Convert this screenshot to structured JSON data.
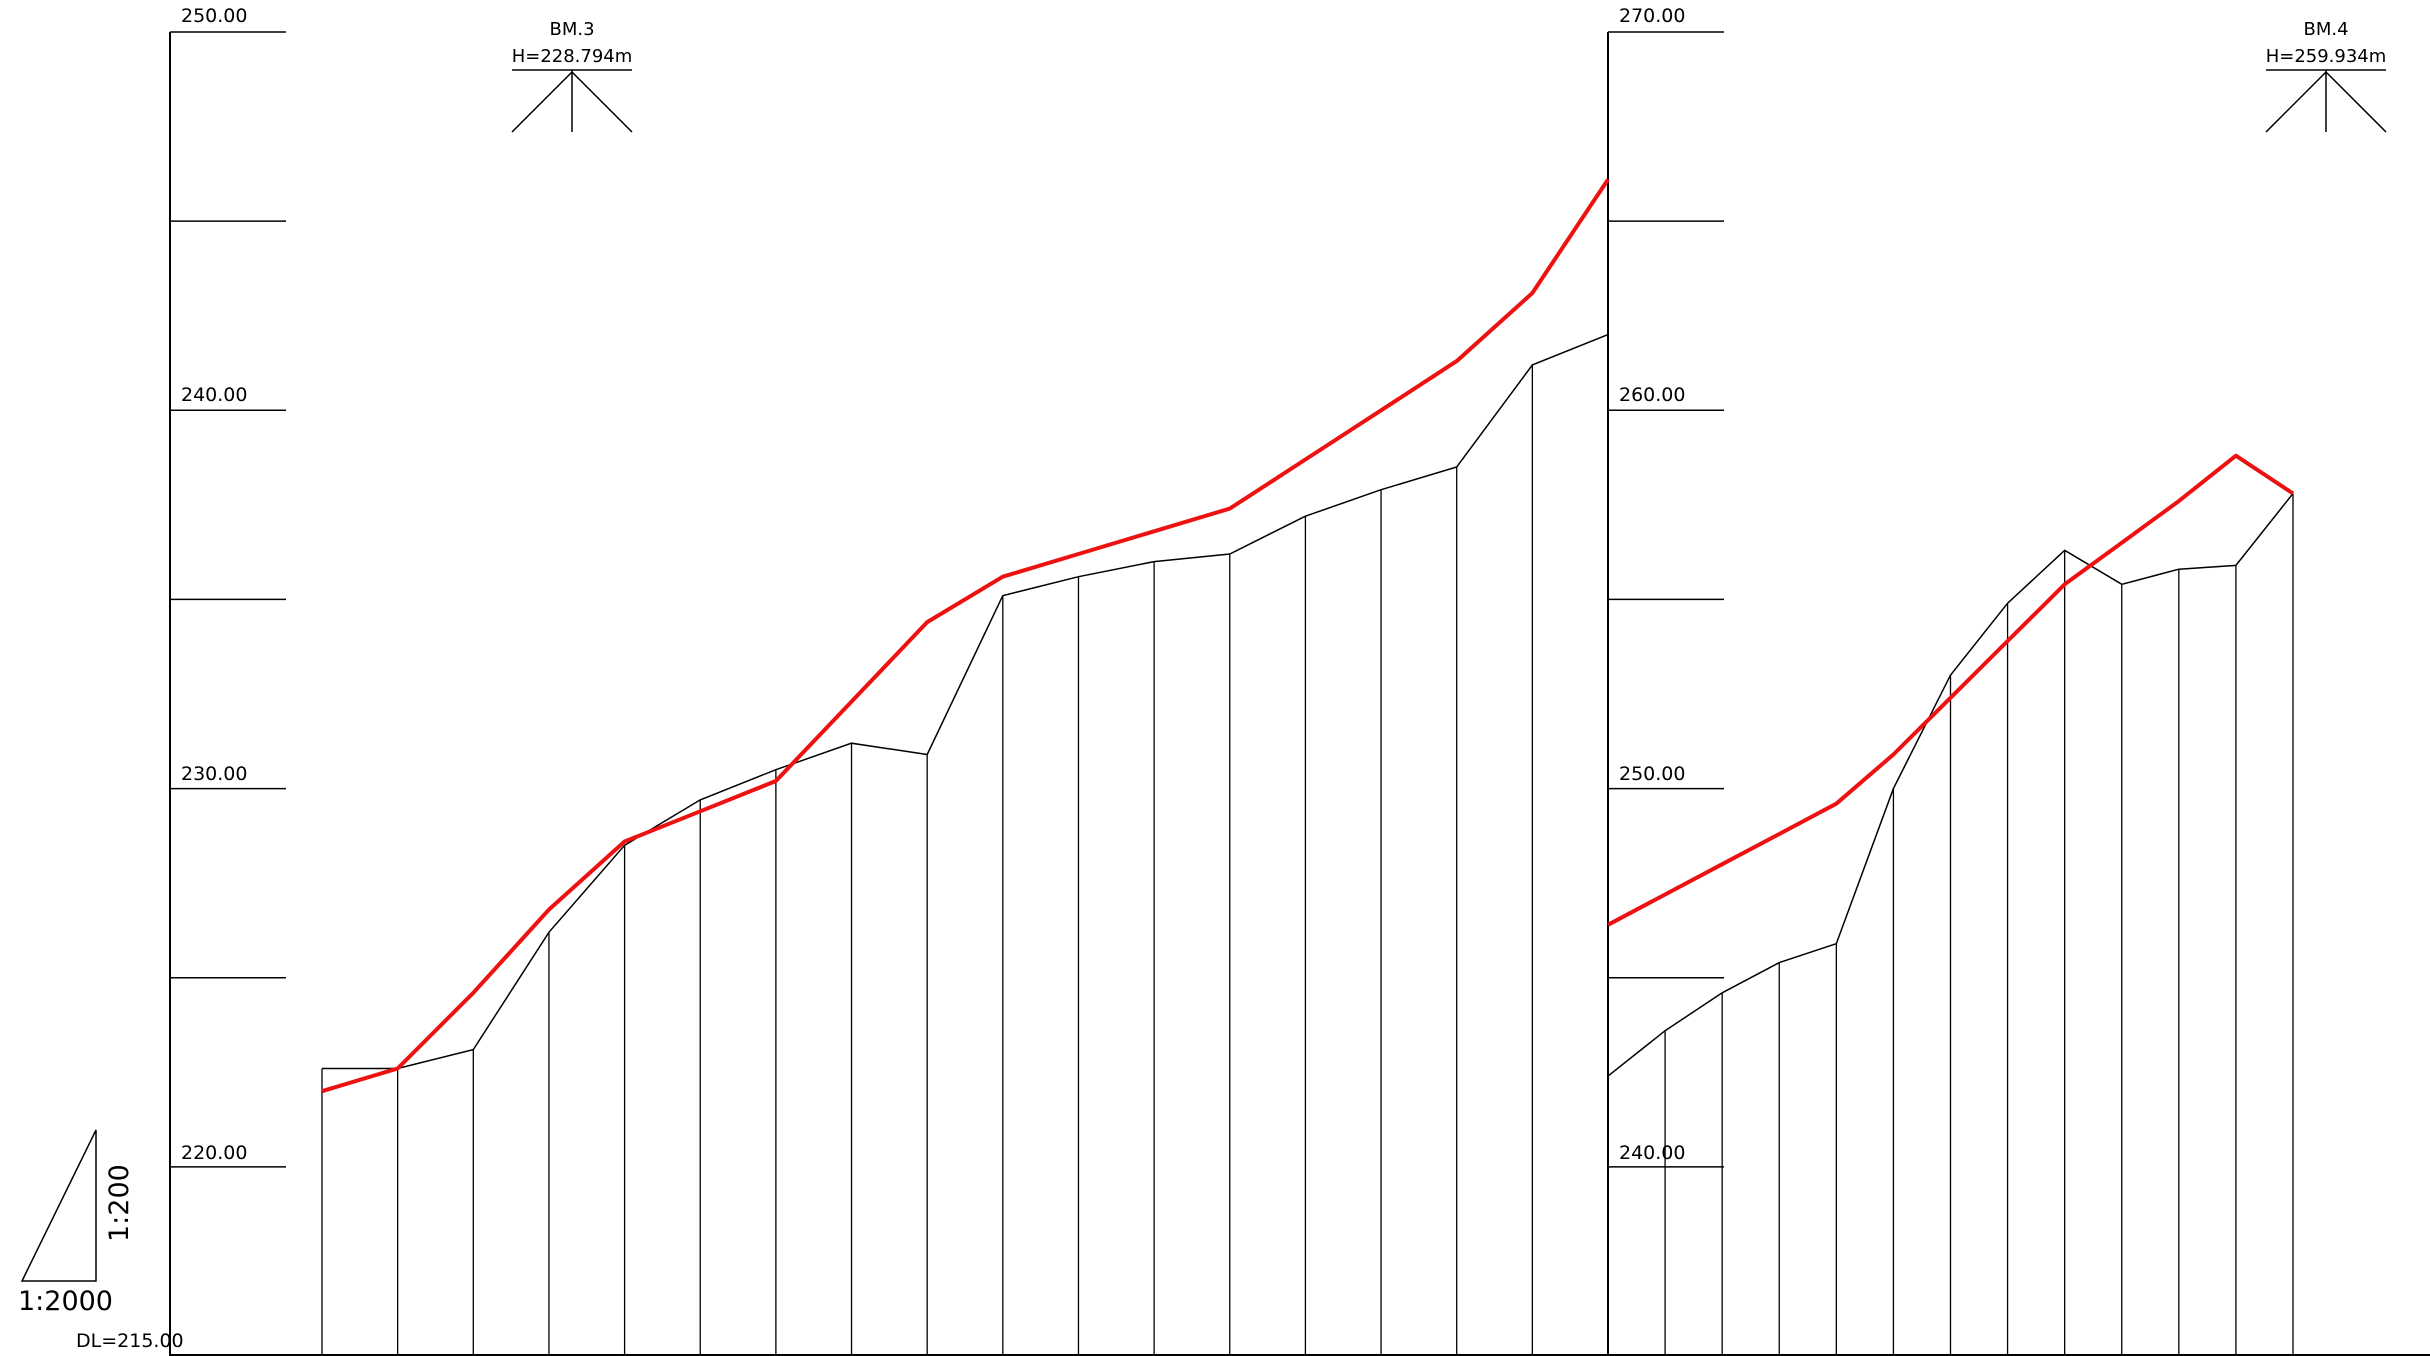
{
  "datum_label": "DL=215.00",
  "scale": {
    "horizontal": "1:2000",
    "vertical": "1:200"
  },
  "colors": {
    "ground_line": "#000000",
    "design_line": "#ee1111",
    "frame_line": "#000000"
  },
  "sections": [
    {
      "id": "left",
      "elevation_labels": [
        "250.00",
        "240.00",
        "230.00",
        "220.00"
      ],
      "benchmark": {
        "name": "BM.3",
        "height": "H=228.794m"
      }
    },
    {
      "id": "right",
      "elevation_labels": [
        "270.00",
        "260.00",
        "250.00",
        "240.00"
      ],
      "benchmark": {
        "name": "BM.4",
        "height": "H=259.934m"
      }
    }
  ],
  "chart_data": [
    {
      "type": "line",
      "section": "left",
      "ylim": [
        215,
        250
      ],
      "y_ticks": [
        220,
        225,
        230,
        235,
        240,
        245,
        250
      ],
      "x": [
        0,
        20,
        40,
        60,
        80,
        100,
        120,
        140,
        160,
        180,
        200,
        220,
        240,
        260,
        280,
        300,
        320,
        340
      ],
      "series": [
        {
          "role": "ground",
          "values": [
            222.6,
            222.6,
            223.1,
            226.2,
            228.5,
            229.7,
            230.5,
            231.2,
            230.9,
            235.1,
            235.6,
            236.0,
            236.2,
            237.2,
            237.9,
            238.5,
            241.2,
            242.0
          ]
        },
        {
          "role": "design",
          "values": [
            222.0,
            222.6,
            224.6,
            226.8,
            228.6,
            229.4,
            230.2,
            232.3,
            234.4,
            235.6,
            236.2,
            236.8,
            237.4,
            238.7,
            240.0,
            241.3,
            243.1,
            246.1
          ]
        }
      ]
    },
    {
      "type": "line",
      "section": "right",
      "ylim": [
        235,
        270
      ],
      "y_ticks": [
        240,
        245,
        250,
        255,
        260,
        265,
        270
      ],
      "x": [
        340,
        360,
        380,
        400,
        420,
        440,
        460,
        480,
        500,
        520,
        540,
        560,
        580
      ],
      "series": [
        {
          "role": "ground",
          "values": [
            242.4,
            243.6,
            244.6,
            245.4,
            245.9,
            250.0,
            253.0,
            254.9,
            256.3,
            255.4,
            255.8,
            255.9,
            257.8
          ]
        },
        {
          "role": "design",
          "values": [
            246.4,
            247.2,
            248.0,
            248.8,
            249.6,
            250.9,
            252.4,
            253.9,
            255.4,
            256.5,
            257.6,
            258.8,
            257.8
          ]
        }
      ]
    }
  ]
}
